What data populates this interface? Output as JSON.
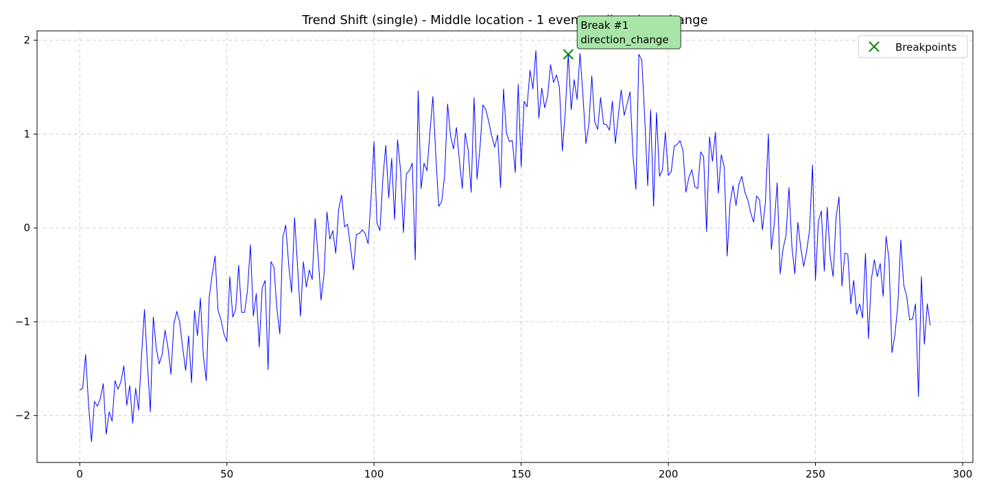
{
  "chart_data": {
    "type": "line",
    "title": "Trend Shift (single) - Middle location - 1 events - direction_change",
    "xlabel": "",
    "ylabel": "",
    "xlim": [
      -14.5,
      303.5
    ],
    "ylim": [
      -2.5,
      2.1
    ],
    "xticks": [
      0,
      50,
      100,
      150,
      200,
      250,
      300
    ],
    "xtick_labels": [
      "0",
      "50",
      "100",
      "150",
      "200",
      "250",
      "300"
    ],
    "yticks": [
      -2,
      -1,
      0,
      1,
      2
    ],
    "ytick_labels": [
      "−2",
      "−1",
      "0",
      "1",
      "2"
    ],
    "grid": true,
    "legend_position": "top-right",
    "series": [
      {
        "color": "#0000ff",
        "x_start": 0,
        "values": [
          -1.73,
          -1.71,
          -1.35,
          -1.88,
          -2.28,
          -1.85,
          -1.9,
          -1.82,
          -1.66,
          -2.2,
          -1.96,
          -2.06,
          -1.63,
          -1.72,
          -1.64,
          -1.47,
          -1.89,
          -1.68,
          -2.08,
          -1.71,
          -1.94,
          -1.37,
          -0.87,
          -1.45,
          -1.96,
          -0.95,
          -1.28,
          -1.45,
          -1.35,
          -1.09,
          -1.28,
          -1.56,
          -1.02,
          -0.89,
          -1.01,
          -1.28,
          -1.52,
          -1.15,
          -1.65,
          -0.88,
          -1.15,
          -0.75,
          -1.36,
          -1.63,
          -0.74,
          -0.5,
          -0.3,
          -0.88,
          -0.98,
          -1.13,
          -1.21,
          -0.52,
          -0.95,
          -0.87,
          -0.4,
          -0.9,
          -0.9,
          -0.67,
          -0.18,
          -0.94,
          -0.7,
          -1.27,
          -0.64,
          -0.56,
          -1.51,
          -0.36,
          -0.42,
          -0.86,
          -1.13,
          -0.1,
          0.03,
          -0.39,
          -0.69,
          0.11,
          -0.4,
          -0.94,
          -0.36,
          -0.63,
          -0.45,
          -0.55,
          0.1,
          -0.3,
          -0.77,
          -0.5,
          0.17,
          -0.12,
          -0.03,
          -0.27,
          0.2,
          0.35,
          0.01,
          0.04,
          -0.2,
          -0.45,
          -0.07,
          -0.06,
          -0.02,
          -0.06,
          -0.17,
          0.32,
          0.92,
          0.05,
          -0.03,
          0.52,
          0.88,
          0.32,
          0.74,
          0.09,
          0.94,
          0.62,
          -0.05,
          0.58,
          0.61,
          0.69,
          -0.34,
          1.46,
          0.42,
          0.69,
          0.61,
          1.02,
          1.4,
          0.77,
          0.23,
          0.28,
          0.56,
          1.32,
          0.98,
          0.84,
          1.07,
          0.72,
          0.42,
          1.01,
          0.83,
          0.38,
          1.39,
          0.52,
          0.85,
          1.31,
          1.26,
          1.13,
          0.98,
          0.86,
          0.99,
          0.43,
          1.48,
          1.01,
          0.92,
          0.93,
          0.59,
          1.53,
          0.65,
          1.35,
          1.29,
          1.68,
          1.48,
          1.89,
          1.17,
          1.49,
          1.28,
          1.41,
          1.74,
          1.55,
          1.63,
          1.5,
          0.82,
          1.24,
          1.85,
          1.26,
          1.58,
          1.37,
          1.86,
          1.41,
          0.9,
          1.1,
          1.62,
          1.13,
          1.05,
          1.39,
          1.11,
          1.1,
          1.04,
          1.35,
          0.9,
          1.19,
          1.47,
          1.2,
          1.32,
          1.45,
          0.77,
          0.41,
          1.85,
          1.79,
          1.17,
          0.45,
          1.26,
          0.23,
          1.23,
          0.55,
          0.62,
          1.02,
          0.56,
          0.6,
          0.87,
          0.89,
          0.93,
          0.82,
          0.38,
          0.54,
          0.62,
          0.44,
          0.42,
          0.81,
          0.76,
          -0.04,
          0.97,
          0.71,
          1.02,
          0.37,
          0.78,
          0.65,
          -0.3,
          0.27,
          0.45,
          0.24,
          0.47,
          0.55,
          0.38,
          0.3,
          0.16,
          0.06,
          0.34,
          0.3,
          -0.02,
          0.28,
          1.0,
          -0.23,
          0.04,
          0.48,
          -0.49,
          -0.22,
          -0.08,
          0.43,
          -0.2,
          -0.49,
          0.06,
          -0.21,
          -0.41,
          -0.25,
          -0.02,
          0.67,
          -0.56,
          0.07,
          0.18,
          -0.46,
          0.22,
          -0.3,
          -0.52,
          0.11,
          0.33,
          -0.62,
          -0.27,
          -0.28,
          -0.81,
          -0.56,
          -0.92,
          -0.81,
          -0.96,
          -0.27,
          -1.18,
          -0.55,
          -0.34,
          -0.52,
          -0.38,
          -0.73,
          -0.09,
          -0.34,
          -1.33,
          -1.14,
          -0.82,
          -0.13,
          -0.61,
          -0.73,
          -0.98,
          -0.97,
          -0.81,
          -1.8,
          -0.52,
          -1.24,
          -0.81,
          -1.04
        ]
      }
    ],
    "breakpoints": [
      {
        "x": 166,
        "y": 1.85,
        "color": "#008000"
      }
    ],
    "legend": [
      {
        "label": "Breakpoints",
        "marker": "x",
        "color": "#008000"
      }
    ],
    "annotations": [
      {
        "x": 166,
        "y": 1.85,
        "lines": [
          "Break #1",
          "direction_change"
        ],
        "box_color": "#a8e6a8"
      }
    ]
  }
}
